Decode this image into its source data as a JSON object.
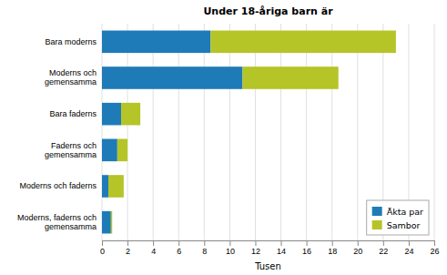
{
  "chart_data": {
    "type": "bar",
    "orientation": "horizontal",
    "stacked": true,
    "title": "Under 18-åriga barn är",
    "xlabel": "Tusen",
    "categories": [
      "Moderns, faderns och\ngemensamma",
      "Moderns och faderns",
      "Faderns och\ngemensamma",
      "Bara faderns",
      "Moderns och\ngemensamma",
      "Bara moderns"
    ],
    "series": [
      {
        "name": "Äkta par",
        "color": "#1f7bb8",
        "values": [
          0.7,
          0.5,
          1.2,
          1.5,
          11.0,
          8.5
        ]
      },
      {
        "name": "Sambor",
        "color": "#b5c427",
        "values": [
          0.1,
          1.2,
          0.8,
          1.5,
          7.5,
          14.5
        ]
      }
    ],
    "xlim": [
      0,
      26
    ],
    "xticks": [
      0,
      2,
      4,
      6,
      8,
      10,
      12,
      14,
      16,
      18,
      20,
      22,
      24,
      26
    ],
    "grid": true,
    "legend": "lower right"
  }
}
